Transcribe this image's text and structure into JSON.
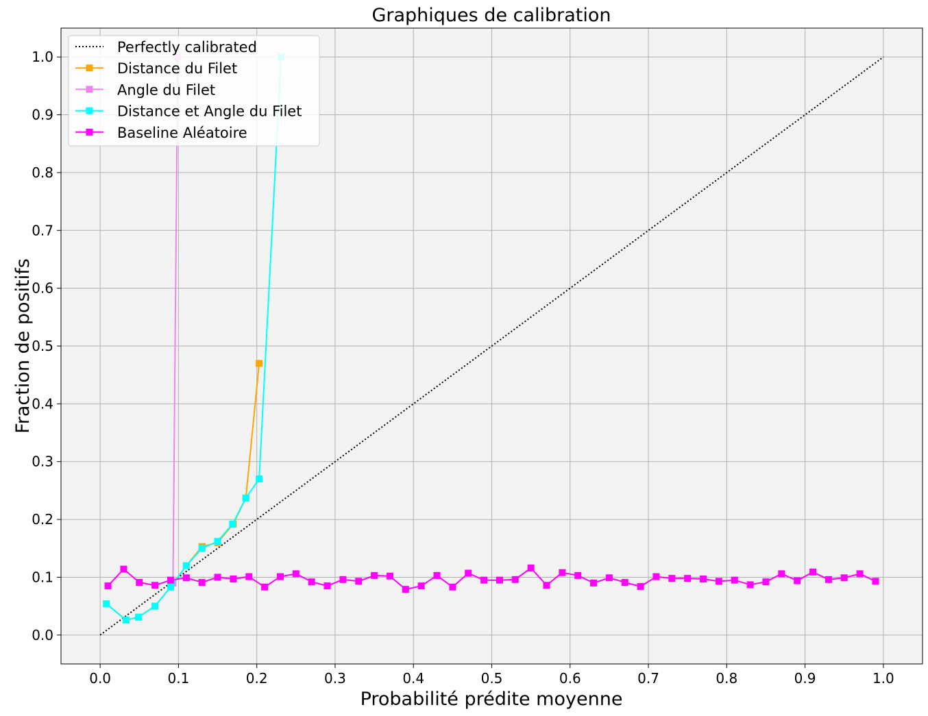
{
  "chart_data": {
    "type": "line",
    "title": "Graphiques de calibration",
    "xlabel": "Probabilité prédite moyenne",
    "ylabel": "Fraction de positifs",
    "xlim": [
      -0.05,
      1.05
    ],
    "ylim": [
      -0.05,
      1.05
    ],
    "xticks": [
      "0.0",
      "0.1",
      "0.2",
      "0.3",
      "0.4",
      "0.5",
      "0.6",
      "0.7",
      "0.8",
      "0.9",
      "1.0"
    ],
    "yticks": [
      "0.0",
      "0.1",
      "0.2",
      "0.3",
      "0.4",
      "0.5",
      "0.6",
      "0.7",
      "0.8",
      "0.9",
      "1.0"
    ],
    "grid": true,
    "background": "#f2f2f2",
    "legend_position": "upper-left",
    "series": [
      {
        "name": "Perfectly calibrated",
        "color": "#000000",
        "style": "dotted",
        "marker": "none",
        "x": [
          0.0,
          1.0
        ],
        "y": [
          0.0,
          1.0
        ]
      },
      {
        "name": "Distance du Filet",
        "color": "#ffa500",
        "style": "solid",
        "marker": "square",
        "x": [
          0.008,
          0.033,
          0.049,
          0.07,
          0.09,
          0.11,
          0.13,
          0.15,
          0.17,
          0.186,
          0.203
        ],
        "y": [
          0.054,
          0.026,
          0.031,
          0.05,
          0.083,
          0.12,
          0.153,
          0.16,
          0.192,
          0.237,
          0.47
        ]
      },
      {
        "name": "Angle du Filet",
        "color": "#ee82ee",
        "style": "solid",
        "marker": "square",
        "x": [
          0.093,
          0.099
        ],
        "y": [
          0.09,
          1.0
        ]
      },
      {
        "name": "Distance et Angle du Filet",
        "color": "#00ffff",
        "style": "solid",
        "marker": "square",
        "x": [
          0.008,
          0.033,
          0.049,
          0.07,
          0.09,
          0.11,
          0.13,
          0.15,
          0.169,
          0.186,
          0.203,
          0.231
        ],
        "y": [
          0.054,
          0.026,
          0.031,
          0.05,
          0.083,
          0.12,
          0.15,
          0.162,
          0.192,
          0.237,
          0.27,
          1.0
        ]
      },
      {
        "name": "Baseline Aléatoire",
        "color": "#ff00ff",
        "style": "solid",
        "marker": "square",
        "x": [
          0.01,
          0.03,
          0.05,
          0.07,
          0.09,
          0.11,
          0.13,
          0.15,
          0.17,
          0.19,
          0.21,
          0.23,
          0.25,
          0.27,
          0.29,
          0.31,
          0.33,
          0.35,
          0.37,
          0.39,
          0.41,
          0.43,
          0.45,
          0.47,
          0.49,
          0.51,
          0.53,
          0.55,
          0.57,
          0.59,
          0.61,
          0.63,
          0.65,
          0.67,
          0.69,
          0.71,
          0.73,
          0.75,
          0.77,
          0.79,
          0.81,
          0.83,
          0.85,
          0.87,
          0.89,
          0.91,
          0.93,
          0.95,
          0.97,
          0.99
        ],
        "y": [
          0.085,
          0.114,
          0.091,
          0.086,
          0.095,
          0.099,
          0.091,
          0.1,
          0.097,
          0.101,
          0.083,
          0.101,
          0.106,
          0.092,
          0.085,
          0.096,
          0.093,
          0.103,
          0.102,
          0.079,
          0.085,
          0.103,
          0.083,
          0.107,
          0.095,
          0.095,
          0.096,
          0.116,
          0.086,
          0.108,
          0.103,
          0.09,
          0.099,
          0.091,
          0.084,
          0.101,
          0.098,
          0.098,
          0.097,
          0.093,
          0.095,
          0.087,
          0.092,
          0.106,
          0.094,
          0.109,
          0.096,
          0.099,
          0.106,
          0.093
        ]
      }
    ]
  }
}
